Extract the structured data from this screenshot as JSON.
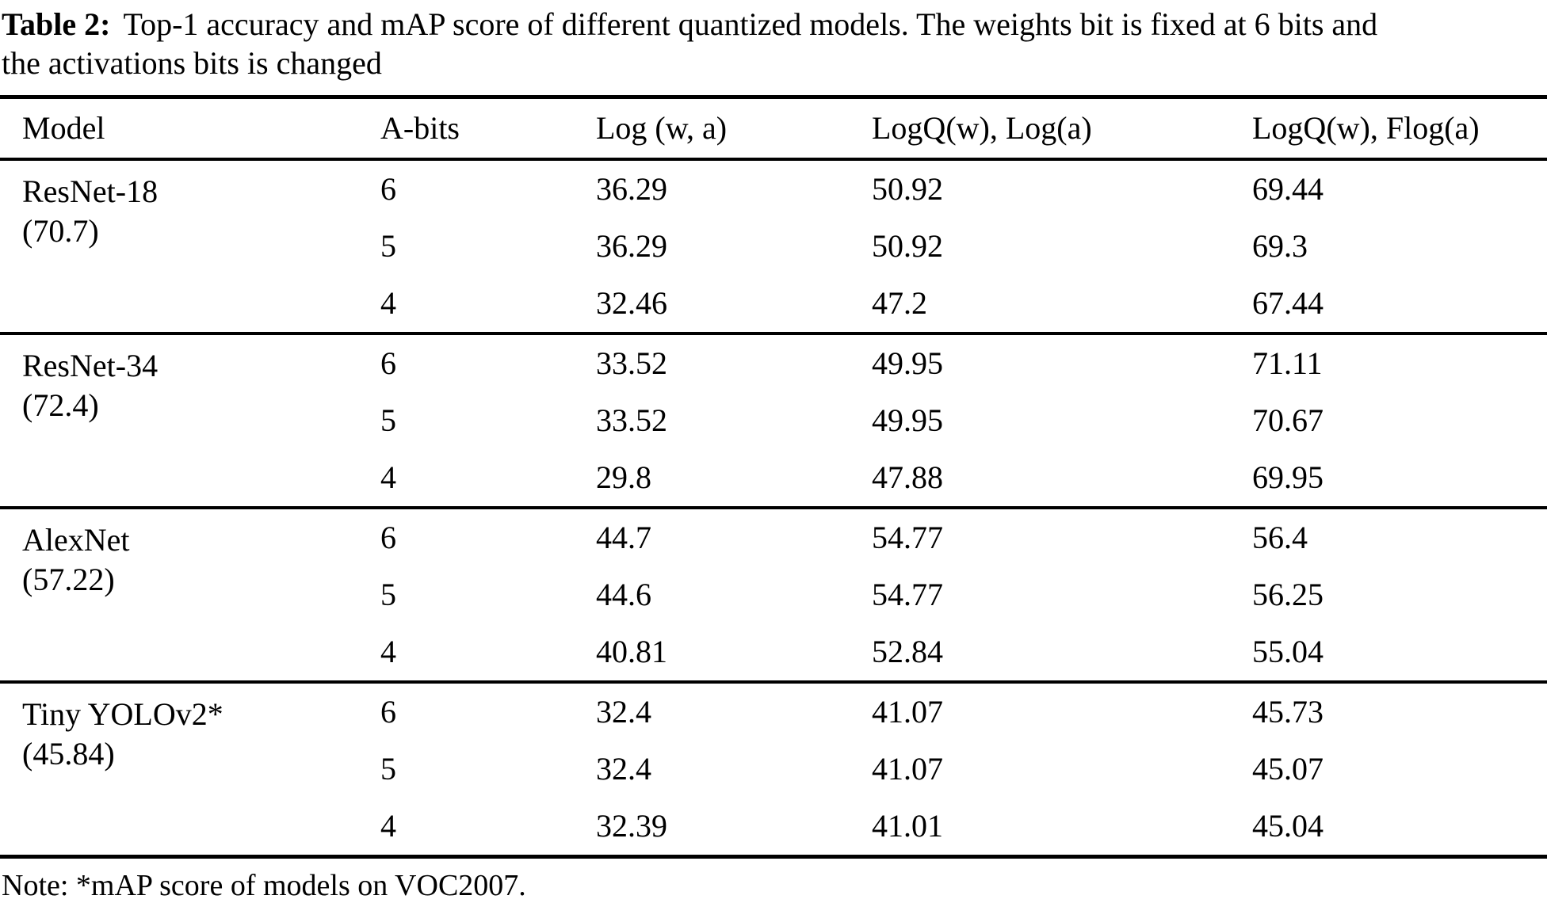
{
  "caption": {
    "label": "Table 2:",
    "line1_rest": "Top-1 accuracy and mAP score of different quantized models. The weights bit is fixed at 6 bits and",
    "line2": "the activations bits is changed"
  },
  "table": {
    "columns": [
      "Model",
      "A-bits",
      "Log (w, a)",
      "LogQ(w), Log(a)",
      "LogQ(w), Flog(a)"
    ],
    "groups": [
      {
        "model": "ResNet-18",
        "baseline": "(70.7)",
        "rows": [
          {
            "a_bits": "6",
            "log_wa": "36.29",
            "logq_log": "50.92",
            "logq_flog": "69.44"
          },
          {
            "a_bits": "5",
            "log_wa": "36.29",
            "logq_log": "50.92",
            "logq_flog": "69.3"
          },
          {
            "a_bits": "4",
            "log_wa": "32.46",
            "logq_log": "47.2",
            "logq_flog": "67.44"
          }
        ]
      },
      {
        "model": "ResNet-34",
        "baseline": "(72.4)",
        "rows": [
          {
            "a_bits": "6",
            "log_wa": "33.52",
            "logq_log": "49.95",
            "logq_flog": "71.11"
          },
          {
            "a_bits": "5",
            "log_wa": "33.52",
            "logq_log": "49.95",
            "logq_flog": "70.67"
          },
          {
            "a_bits": "4",
            "log_wa": "29.8",
            "logq_log": "47.88",
            "logq_flog": "69.95"
          }
        ]
      },
      {
        "model": "AlexNet",
        "baseline": "(57.22)",
        "rows": [
          {
            "a_bits": "6",
            "log_wa": "44.7",
            "logq_log": "54.77",
            "logq_flog": "56.4"
          },
          {
            "a_bits": "5",
            "log_wa": "44.6",
            "logq_log": "54.77",
            "logq_flog": "56.25"
          },
          {
            "a_bits": "4",
            "log_wa": "40.81",
            "logq_log": "52.84",
            "logq_flog": "55.04"
          }
        ]
      },
      {
        "model": "Tiny YOLOv2*",
        "baseline": "(45.84)",
        "rows": [
          {
            "a_bits": "6",
            "log_wa": "32.4",
            "logq_log": "41.07",
            "logq_flog": "45.73"
          },
          {
            "a_bits": "5",
            "log_wa": "32.4",
            "logq_log": "41.07",
            "logq_flog": "45.07"
          },
          {
            "a_bits": "4",
            "log_wa": "32.39",
            "logq_log": "41.01",
            "logq_flog": "45.04"
          }
        ]
      }
    ]
  },
  "note": "Note: *mAP score of models on VOC2007.",
  "colors": {
    "text": "#000000",
    "background": "#ffffff",
    "rule": "#000000"
  }
}
